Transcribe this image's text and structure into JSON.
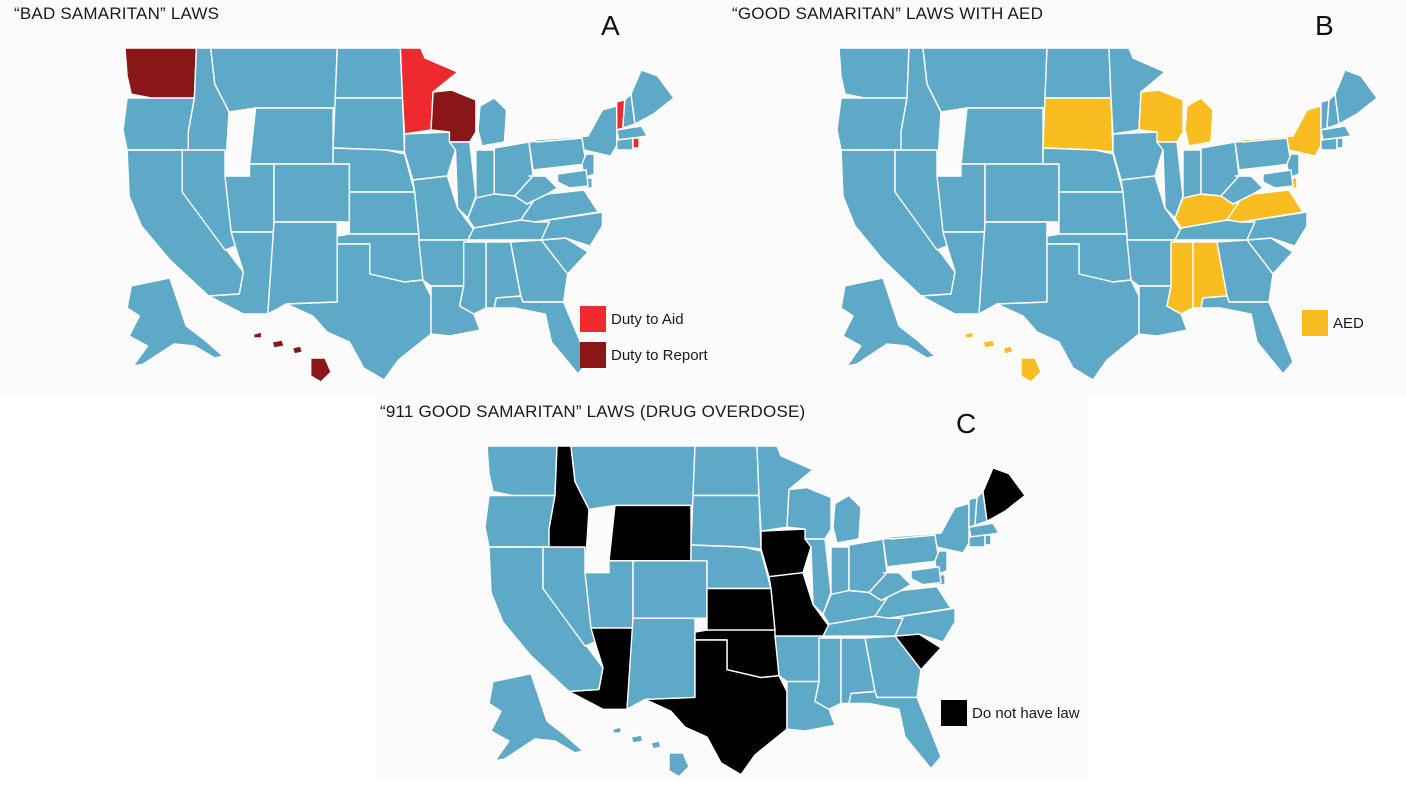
{
  "colors": {
    "base": "#5ea8c8",
    "border": "#ffffff",
    "duty_to_aid": "#ee2a2e",
    "duty_to_report": "#8a1618",
    "aed": "#f9bd21",
    "no_law": "#000000"
  },
  "panels": [
    {
      "id": "A",
      "title": "“BAD SAMARITAN” LAWS",
      "letter": "A",
      "legend": [
        {
          "label": "Duty to Aid",
          "color": "#ee2a2e"
        },
        {
          "label": "Duty to Report",
          "color": "#8a1618"
        }
      ],
      "highlighted_states": [
        {
          "state": "MN",
          "category": "Duty to Aid"
        },
        {
          "state": "VT",
          "category": "Duty to Aid"
        },
        {
          "state": "RI",
          "category": "Duty to Aid"
        },
        {
          "state": "WA",
          "category": "Duty to Report"
        },
        {
          "state": "WI",
          "category": "Duty to Report"
        },
        {
          "state": "HI",
          "category": "Duty to Report"
        }
      ]
    },
    {
      "id": "B",
      "title": "“GOOD SAMARITAN” LAWS WITH AED",
      "letter": "B",
      "legend": [
        {
          "label": "AED",
          "color": "#f9bd21"
        }
      ],
      "highlighted_states": [
        {
          "state": "SD",
          "category": "AED"
        },
        {
          "state": "WI",
          "category": "AED"
        },
        {
          "state": "MI",
          "category": "AED"
        },
        {
          "state": "NY",
          "category": "AED"
        },
        {
          "state": "KY",
          "category": "AED"
        },
        {
          "state": "VA",
          "category": "AED"
        },
        {
          "state": "MS",
          "category": "AED"
        },
        {
          "state": "AL",
          "category": "AED"
        },
        {
          "state": "DE",
          "category": "AED"
        },
        {
          "state": "HI",
          "category": "AED"
        }
      ]
    },
    {
      "id": "C",
      "title": "“911 GOOD SAMARITAN” LAWS (DRUG OVERDOSE)",
      "letter": "C",
      "legend": [
        {
          "label": "Do not have law",
          "color": "#000000"
        }
      ],
      "highlighted_states": [
        {
          "state": "ID",
          "category": "Do not have law"
        },
        {
          "state": "WY",
          "category": "Do not have law"
        },
        {
          "state": "IA",
          "category": "Do not have law"
        },
        {
          "state": "KS",
          "category": "Do not have law"
        },
        {
          "state": "MO",
          "category": "Do not have law"
        },
        {
          "state": "AZ",
          "category": "Do not have law"
        },
        {
          "state": "OK",
          "category": "Do not have law"
        },
        {
          "state": "TX",
          "category": "Do not have law"
        },
        {
          "state": "SC",
          "category": "Do not have law"
        },
        {
          "state": "ME",
          "category": "Do not have law"
        }
      ]
    }
  ]
}
